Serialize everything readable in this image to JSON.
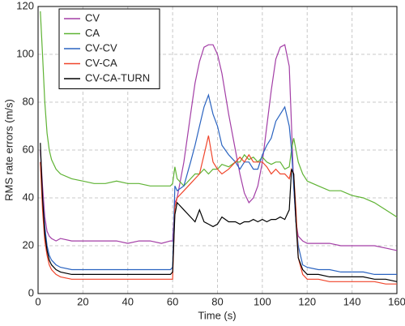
{
  "chart_data": {
    "type": "line",
    "x_label": "Time (s)",
    "y_label": "RMS rate errors (m/s)",
    "x": [
      1,
      2,
      3,
      4,
      5,
      6,
      8,
      10,
      15,
      20,
      25,
      30,
      35,
      40,
      45,
      50,
      55,
      59,
      60,
      61,
      62,
      65,
      68,
      70,
      72,
      74,
      76,
      78,
      80,
      82,
      85,
      88,
      90,
      92,
      94,
      96,
      98,
      100,
      102,
      104,
      106,
      108,
      110,
      112,
      113,
      114,
      115,
      116,
      118,
      120,
      125,
      130,
      135,
      140,
      145,
      150,
      155,
      160
    ],
    "series": [
      {
        "name": "CV",
        "color": "#a33ea6",
        "values": [
          60,
          45,
          32,
          26,
          24,
          23,
          22,
          23,
          22,
          22,
          22,
          22,
          22,
          21,
          22,
          22,
          21,
          22,
          22,
          38,
          40,
          55,
          75,
          88,
          97,
          103,
          104,
          104,
          100,
          92,
          75,
          60,
          50,
          42,
          38,
          40,
          45,
          55,
          70,
          85,
          98,
          103,
          104,
          95,
          70,
          45,
          30,
          24,
          22,
          21,
          21,
          21,
          20,
          20,
          20,
          20,
          19,
          18
        ]
      },
      {
        "name": "CA",
        "color": "#5fb334",
        "values": [
          118,
          100,
          80,
          67,
          60,
          56,
          52,
          50,
          48,
          47,
          46,
          46,
          47,
          46,
          46,
          45,
          45,
          45,
          46,
          53,
          48,
          45,
          48,
          50,
          50,
          52,
          50,
          52,
          52,
          54,
          53,
          55,
          55,
          58,
          56,
          57,
          55,
          57,
          55,
          54,
          55,
          55,
          52,
          53,
          60,
          65,
          60,
          55,
          50,
          47,
          45,
          43,
          43,
          41,
          40,
          38,
          35,
          32
        ]
      },
      {
        "name": "CV-CV",
        "color": "#2a63c0",
        "values": [
          55,
          40,
          28,
          20,
          16,
          14,
          12,
          11,
          10,
          10,
          10,
          10,
          10,
          10,
          10,
          10,
          10,
          10,
          11,
          45,
          43,
          45,
          55,
          62,
          70,
          78,
          83,
          75,
          70,
          62,
          58,
          55,
          52,
          55,
          55,
          52,
          52,
          58,
          62,
          65,
          72,
          75,
          78,
          70,
          60,
          45,
          30,
          20,
          12,
          11,
          10,
          10,
          9,
          9,
          9,
          8,
          8,
          8
        ]
      },
      {
        "name": "CV-CA",
        "color": "#f0442a",
        "values": [
          55,
          35,
          22,
          16,
          12,
          10,
          8,
          7,
          6,
          6,
          6,
          6,
          6,
          6,
          6,
          6,
          6,
          6,
          6,
          36,
          40,
          43,
          46,
          48,
          50,
          58,
          66,
          55,
          52,
          50,
          52,
          55,
          57,
          55,
          58,
          55,
          55,
          55,
          53,
          50,
          52,
          50,
          50,
          48,
          52,
          50,
          35,
          15,
          8,
          6,
          6,
          5,
          5,
          5,
          5,
          5,
          4,
          4
        ]
      },
      {
        "name": "CV-CA-TURN",
        "color": "#000000",
        "values": [
          63,
          40,
          25,
          18,
          14,
          12,
          10,
          9,
          8,
          8,
          8,
          8,
          8,
          8,
          8,
          8,
          8,
          8,
          9,
          33,
          38,
          35,
          32,
          30,
          35,
          30,
          29,
          28,
          29,
          32,
          30,
          30,
          29,
          30,
          30,
          31,
          30,
          31,
          30,
          31,
          31,
          32,
          31,
          35,
          52,
          50,
          30,
          15,
          10,
          8,
          8,
          7,
          7,
          7,
          7,
          6,
          6,
          5
        ]
      }
    ],
    "xlim": [
      0,
      160
    ],
    "xticks": [
      0,
      20,
      40,
      60,
      80,
      100,
      120,
      140,
      160
    ],
    "ylim": [
      0,
      120
    ],
    "yticks": [
      0,
      20,
      40,
      60,
      80,
      100,
      120
    ],
    "grid": true,
    "legend": "upper-left"
  }
}
